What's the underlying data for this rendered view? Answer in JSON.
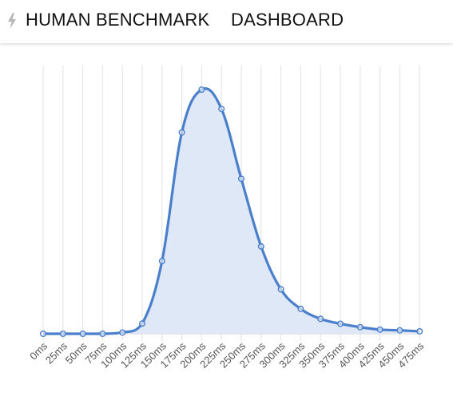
{
  "header": {
    "brand": "HUMAN BENCHMARK",
    "nav_dashboard": "DASHBOARD",
    "logo_icon": "lightning-bolt-icon"
  },
  "colors": {
    "line": "#4a7fcb",
    "fill": "#dce7f6",
    "grid": "#e2e2e2",
    "text": "#555555"
  },
  "chart_data": {
    "type": "area",
    "title": "",
    "xlabel": "",
    "ylabel": "",
    "categories": [
      "0ms",
      "25ms",
      "50ms",
      "75ms",
      "100ms",
      "125ms",
      "150ms",
      "175ms",
      "200ms",
      "225ms",
      "250ms",
      "275ms",
      "300ms",
      "325ms",
      "350ms",
      "375ms",
      "400ms",
      "425ms",
      "450ms",
      "475ms"
    ],
    "values": [
      0,
      0,
      0,
      0,
      0.5,
      4.2,
      29.8,
      82.5,
      100,
      92.1,
      63.5,
      35.8,
      18.2,
      10.2,
      6.1,
      4.1,
      2.7,
      1.7,
      1.4,
      1.0
    ],
    "ylim": [
      0,
      100
    ],
    "grid": "vertical",
    "legend": "none",
    "y_tick_labels": false
  }
}
